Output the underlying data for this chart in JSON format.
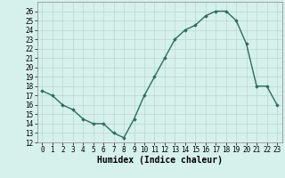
{
  "x": [
    0,
    1,
    2,
    3,
    4,
    5,
    6,
    7,
    8,
    9,
    10,
    11,
    12,
    13,
    14,
    15,
    16,
    17,
    18,
    19,
    20,
    21,
    22,
    23
  ],
  "y": [
    17.5,
    17.0,
    16.0,
    15.5,
    14.5,
    14.0,
    14.0,
    13.0,
    12.5,
    14.5,
    17.0,
    19.0,
    21.0,
    23.0,
    24.0,
    24.5,
    25.5,
    26.0,
    26.0,
    25.0,
    22.5,
    18.0,
    18.0,
    16.0
  ],
  "xlabel": "Humidex (Indice chaleur)",
  "ylim": [
    12,
    27
  ],
  "xlim": [
    -0.5,
    23.5
  ],
  "yticks": [
    12,
    13,
    14,
    15,
    16,
    17,
    18,
    19,
    20,
    21,
    22,
    23,
    24,
    25,
    26
  ],
  "xticks": [
    0,
    1,
    2,
    3,
    4,
    5,
    6,
    7,
    8,
    9,
    10,
    11,
    12,
    13,
    14,
    15,
    16,
    17,
    18,
    19,
    20,
    21,
    22,
    23
  ],
  "line_color": "#2d6e5e",
  "marker": "D",
  "marker_size": 1.8,
  "bg_color": "#d6f0ec",
  "grid_color": "#b8d8d0",
  "tick_fontsize": 5.5,
  "xlabel_fontsize": 7.0,
  "line_width": 1.0
}
